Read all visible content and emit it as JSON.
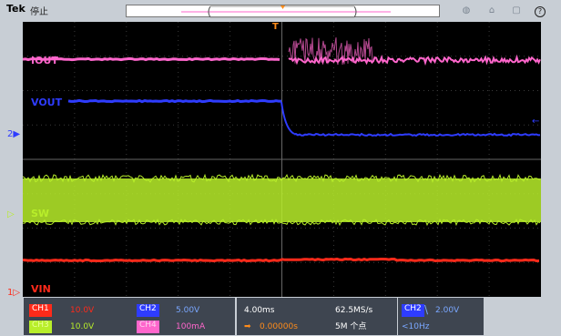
{
  "topbar": {
    "brand": "Tek",
    "status": "停止",
    "help_icon": "?"
  },
  "channels": {
    "ch1": {
      "chip": "CH1",
      "scale": "10.0V",
      "color": "#ff2a1a",
      "label": "VIN",
      "marker": "1"
    },
    "ch2": {
      "chip": "CH2",
      "scale": "5.00V",
      "color": "#2e3cff",
      "label": "VOUT",
      "marker": "2"
    },
    "ch3": {
      "chip": "CH3",
      "scale": "10.0V",
      "color": "#b8ee2a",
      "label": "SW"
    },
    "ch4": {
      "chip": "CH4",
      "scale": "100mA",
      "color": "#ff66cc",
      "label": "IOUT"
    }
  },
  "horizontal": {
    "timebase": "4.00ms",
    "sample_rate": "62.5MS/s",
    "position": "0.00000s",
    "record_length": "5M 个点"
  },
  "trigger": {
    "source": "CH2",
    "slope": "\\",
    "level": "2.00V",
    "frequency": "<10Hz",
    "marker": "T"
  }
}
